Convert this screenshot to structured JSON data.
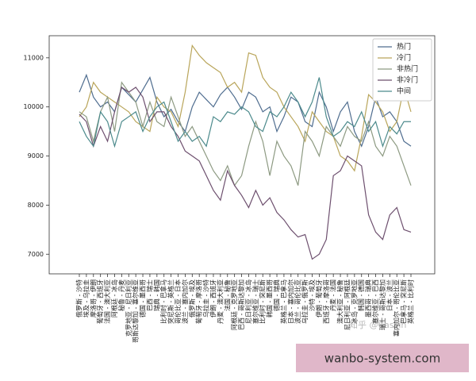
{
  "chart_data": {
    "type": "line",
    "categories": [
      "俄罗斯 - 沙特",
      "埃及 - 乌拉圭",
      "摩洛哥 - 伊朗",
      "葡萄牙 - 西班牙",
      "法国 - 澳大利亚",
      "阿根廷 - 冰岛",
      "秘鲁 - 丹麦",
      "克罗地亚 - 尼日利亚",
      "哥斯达黎加 - 塞尔维亚",
      "德国 - 墨西哥",
      "巴西 - 瑞士",
      "瑞典 - 韩国",
      "比利时 - 巴拿马",
      "突尼斯 - 英格兰",
      "哥伦比亚 - 日本",
      "波兰 - 塞内加尔",
      "俄罗斯 - 埃及",
      "葡萄牙 - 摩洛哥",
      "乌拉圭 - 沙特",
      "伊朗 - 西班牙",
      "丹麦 - 澳大利亚",
      "法国 - 秘鲁",
      "阿根廷 - 克罗地亚",
      "巴西 - 哥斯达黎加",
      "尼日利亚 - 冰岛",
      "塞尔维亚 - 瑞士",
      "比利时 - 突尼斯",
      "韩国 - 墨西哥",
      "德国 - 瑞典",
      "英格兰 - 巴拿马",
      "日本 - 塞内加尔",
      "波兰 - 哥伦比亚",
      "乌拉圭 - 俄罗斯",
      "沙特 - 埃及",
      "伊朗 - 葡萄牙",
      "西班牙 - 摩洛哥",
      "丹麦 - 法国",
      "澳大利亚 - 秘鲁",
      "尼日利亚 - 阿根廷",
      "冰岛 - 克罗地亚",
      "韩国 - 德国",
      "墨西哥 - 瑞典",
      "塞尔维亚 - 巴西",
      "瑞士 - 哥斯达黎加",
      "日本 - 波兰",
      "塞内加尔 - 哥伦比亚",
      "巴拿马 - 突尼斯",
      "英格兰 - 比利时"
    ],
    "series": [
      {
        "name": "热门",
        "color": "#4f6d8f",
        "values": [
          10300,
          10650,
          10200,
          10000,
          10100,
          9900,
          10400,
          10250,
          10100,
          10350,
          10600,
          10100,
          9800,
          9950,
          9700,
          9500,
          10000,
          10300,
          10150,
          10000,
          10250,
          10400,
          10200,
          9950,
          10300,
          10200,
          9900,
          10000,
          9500,
          9800,
          10200,
          10100,
          9700,
          9600,
          10300,
          10000,
          9500,
          9900,
          10100,
          9500,
          9200,
          9600,
          10200,
          9800,
          9900,
          9700,
          9300,
          9200
        ]
      },
      {
        "name": "冷门",
        "color": "#b9a55a",
        "values": [
          9800,
          10000,
          10500,
          10300,
          10200,
          10100,
          10000,
          9900,
          9700,
          9600,
          9500,
          10200,
          10000,
          9900,
          9600,
          10300,
          11250,
          11050,
          10900,
          10800,
          10700,
          10400,
          10500,
          10300,
          11100,
          11050,
          10600,
          10400,
          10300,
          10000,
          9800,
          9600,
          9300,
          9900,
          9700,
          9500,
          9400,
          9000,
          8900,
          8700,
          9400,
          10250,
          10100,
          9900,
          9500,
          9700,
          10400,
          9900
        ]
      },
      {
        "name": "非热门",
        "color": "#8d9a82",
        "values": [
          9900,
          9800,
          9300,
          9900,
          10200,
          9500,
          10500,
          10300,
          10100,
          9600,
          10100,
          9700,
          9600,
          10200,
          9800,
          9400,
          9600,
          9300,
          9000,
          8700,
          8500,
          8800,
          8400,
          8600,
          9200,
          9700,
          9300,
          8600,
          9300,
          9000,
          8800,
          8400,
          9500,
          9300,
          9000,
          9600,
          9400,
          9200,
          9600,
          9400,
          9300,
          9700,
          9200,
          9000,
          9400,
          9200,
          8800,
          8400
        ]
      },
      {
        "name": "非冷门",
        "color": "#6d4f6e",
        "values": [
          9850,
          9700,
          9200,
          9600,
          9300,
          9900,
          10400,
          10300,
          10400,
          10200,
          9700,
          9900,
          9900,
          9600,
          9400,
          9100,
          9000,
          8900,
          8600,
          8300,
          8100,
          8700,
          8400,
          8200,
          7950,
          8300,
          8000,
          8150,
          7850,
          7700,
          7500,
          7350,
          7400,
          6900,
          7000,
          7300,
          8600,
          8700,
          9000,
          8900,
          8800,
          7800,
          7450,
          7300,
          7800,
          7950,
          7500,
          7450
        ]
      },
      {
        "name": "中间",
        "color": "#4c8a8c",
        "values": [
          9700,
          9400,
          9200,
          9900,
          9700,
          9200,
          9700,
          9800,
          9900,
          9500,
          9800,
          10000,
          10100,
          9700,
          9300,
          9500,
          9300,
          9400,
          9200,
          9800,
          9700,
          9900,
          9850,
          10000,
          9900,
          9600,
          9500,
          9900,
          9800,
          10000,
          10300,
          10100,
          9800,
          10100,
          10600,
          9800,
          9400,
          9500,
          9700,
          9600,
          9900,
          9500,
          9700,
          9200,
          9600,
          9450,
          9700,
          9700
        ]
      }
    ],
    "ylim": [
      6600,
      11450
    ],
    "yticks": [
      7000,
      8000,
      9000,
      10000,
      11000
    ],
    "legend": "upper right",
    "watermarks": [
      "知乎 @Cassin",
      "wanbo-system.com"
    ]
  }
}
